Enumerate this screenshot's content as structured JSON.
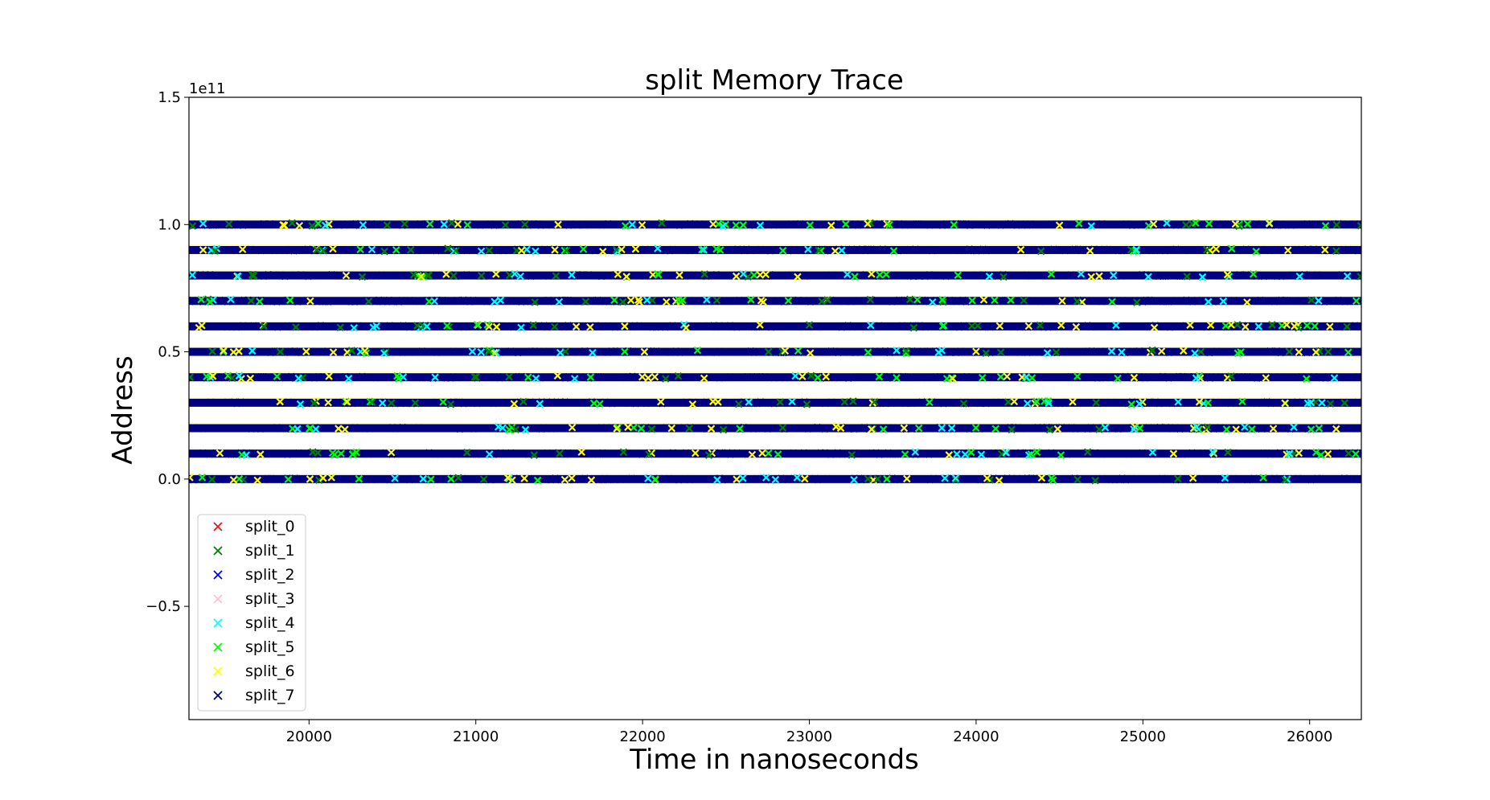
{
  "chart_data": {
    "type": "scatter",
    "title": "split Memory Trace",
    "xlabel": "Time in nanoseconds",
    "ylabel": "Address",
    "y_offset_label": "1e11",
    "xlim": [
      19280,
      26310
    ],
    "ylim": [
      -0.945,
      1.5
    ],
    "y_scale_factor": 100000000000.0,
    "x_ticks": [
      20000,
      21000,
      22000,
      23000,
      24000,
      25000,
      26000
    ],
    "x_tick_labels": [
      "20000",
      "21000",
      "22000",
      "23000",
      "24000",
      "25000",
      "26000"
    ],
    "y_ticks": [
      1.5,
      1.0,
      0.5,
      0.0,
      -0.5
    ],
    "y_tick_labels": [
      "1.5",
      "1.0",
      "0.5",
      "0.0",
      "−0.5"
    ],
    "grid": false,
    "legend_position": "lower-left",
    "marker": "x",
    "address_bands": [
      0.0,
      0.1,
      0.2,
      0.3,
      0.4,
      0.5,
      0.6,
      0.7,
      0.8,
      0.9,
      1.0
    ],
    "series": [
      {
        "name": "split_0",
        "color": "#e41a1c"
      },
      {
        "name": "split_1",
        "color": "#008000"
      },
      {
        "name": "split_2",
        "color": "#0000ff"
      },
      {
        "name": "split_3",
        "color": "#ffc0cb"
      },
      {
        "name": "split_4",
        "color": "#00ffff"
      },
      {
        "name": "split_5",
        "color": "#00ff00"
      },
      {
        "name": "split_6",
        "color": "#ffff00"
      },
      {
        "name": "split_7",
        "color": "#000080"
      }
    ]
  }
}
